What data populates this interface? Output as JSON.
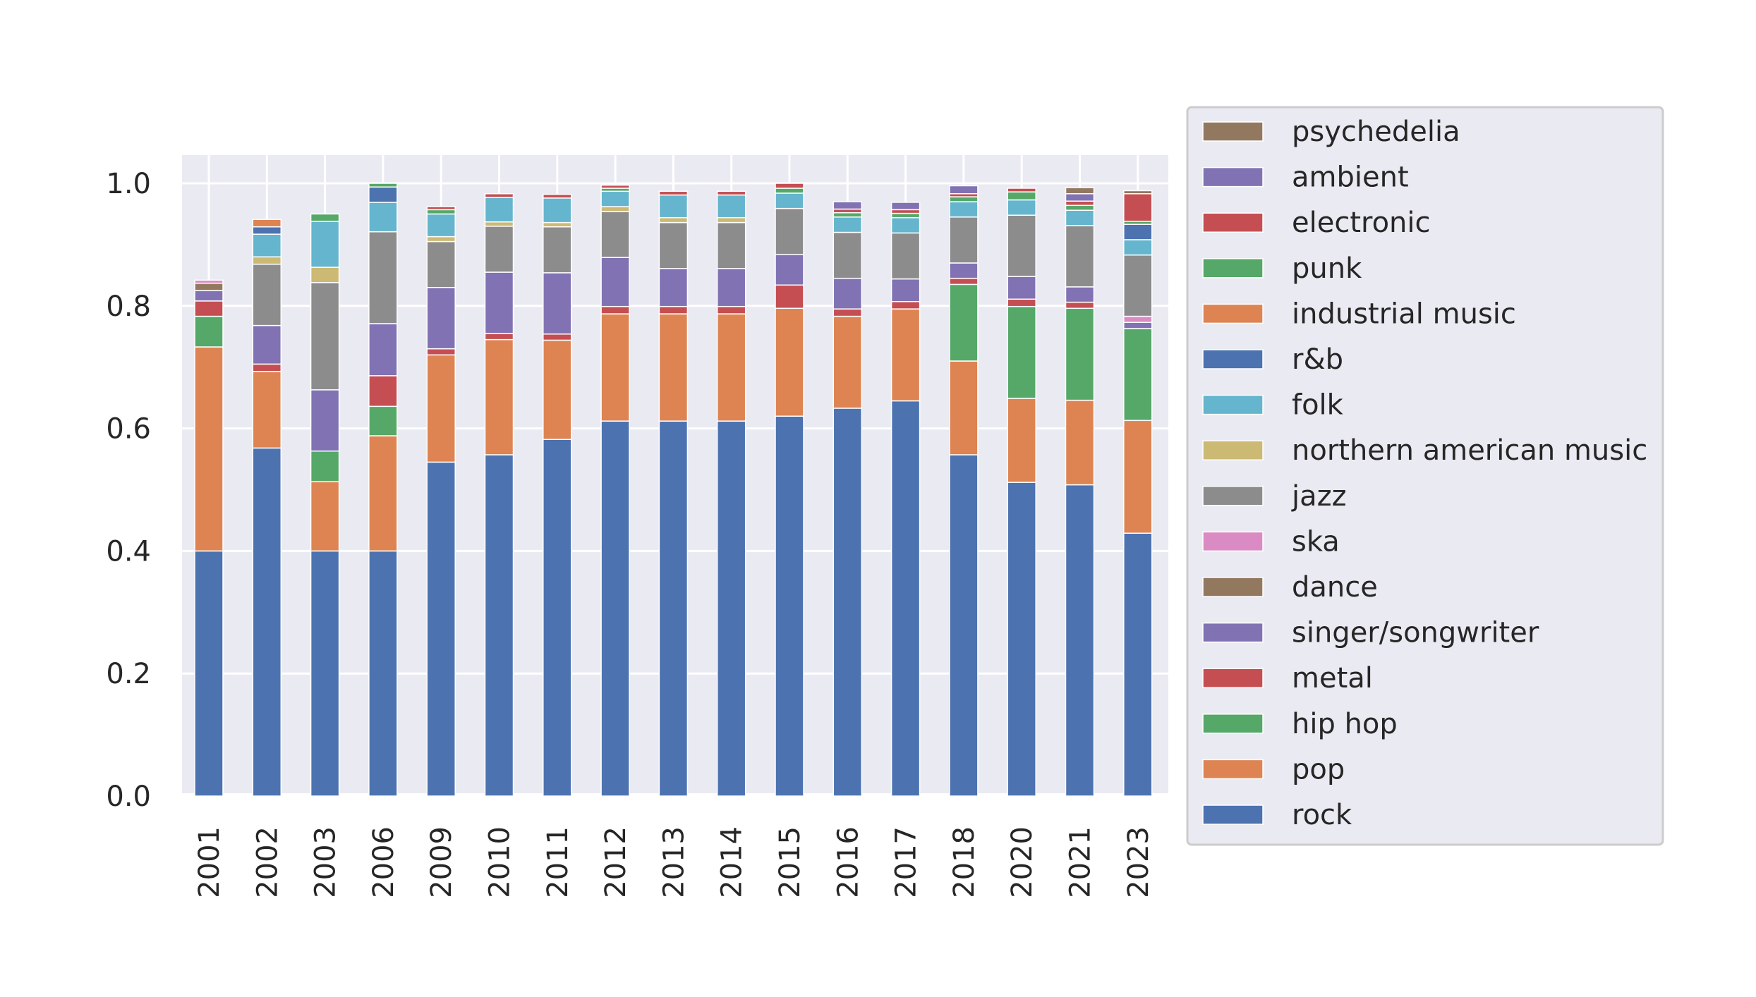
{
  "chart_data": {
    "type": "bar",
    "stacked": true,
    "categories": [
      "2001",
      "2002",
      "2003",
      "2006",
      "2009",
      "2010",
      "2011",
      "2012",
      "2013",
      "2014",
      "2015",
      "2016",
      "2017",
      "2018",
      "2020",
      "2021",
      "2023"
    ],
    "ylim": [
      0,
      1.05
    ],
    "yticks": [
      "0.0",
      "0.2",
      "0.4",
      "0.6",
      "0.8",
      "1.0"
    ],
    "grid": true,
    "legend_position": "right",
    "series": [
      {
        "name": "rock",
        "color": "#4c72b0",
        "values": [
          0.4,
          0.568,
          0.4,
          0.4,
          0.545,
          0.557,
          0.582,
          0.612,
          0.612,
          0.612,
          0.62,
          0.633,
          0.645,
          0.557,
          0.512,
          0.508,
          0.429
        ]
      },
      {
        "name": "pop",
        "color": "#dd8452",
        "values": [
          0.333,
          0.125,
          0.113,
          0.188,
          0.175,
          0.188,
          0.162,
          0.175,
          0.175,
          0.175,
          0.176,
          0.15,
          0.15,
          0.153,
          0.137,
          0.138,
          0.184
        ]
      },
      {
        "name": "hip hop",
        "color": "#55a868",
        "values": [
          0.05,
          0,
          0.05,
          0.048,
          0,
          0,
          0,
          0,
          0,
          0,
          0,
          0,
          0,
          0.125,
          0.15,
          0.15,
          0.15
        ]
      },
      {
        "name": "metal",
        "color": "#c44e52",
        "values": [
          0.025,
          0.012,
          0,
          0.05,
          0.01,
          0.01,
          0.01,
          0.012,
          0.012,
          0.012,
          0.038,
          0.012,
          0.012,
          0.01,
          0.012,
          0.01,
          0
        ]
      },
      {
        "name": "singer/songwriter",
        "color": "#8172b3",
        "values": [
          0.017,
          0.063,
          0.1,
          0.085,
          0.1,
          0.1,
          0.1,
          0.08,
          0.062,
          0.062,
          0.05,
          0.05,
          0.037,
          0.025,
          0.037,
          0.025,
          0.01
        ]
      },
      {
        "name": "dance",
        "color": "#937860",
        "values": [
          0.012,
          0,
          0,
          0,
          0,
          0,
          0,
          0,
          0,
          0,
          0,
          0,
          0,
          0,
          0,
          0,
          0
        ]
      },
      {
        "name": "ska",
        "color": "#da8bc3",
        "values": [
          0.005,
          0,
          0,
          0,
          0,
          0,
          0,
          0,
          0,
          0,
          0,
          0,
          0,
          0,
          0,
          0,
          0.01
        ]
      },
      {
        "name": "jazz",
        "color": "#8c8c8c",
        "values": [
          0,
          0.1,
          0.175,
          0.15,
          0.075,
          0.075,
          0.075,
          0.075,
          0.075,
          0.075,
          0.075,
          0.075,
          0.075,
          0.075,
          0.1,
          0.1,
          0.1
        ]
      },
      {
        "name": "northern american music",
        "color": "#ccb974",
        "values": [
          0,
          0.012,
          0.025,
          0,
          0.008,
          0.007,
          0.007,
          0.008,
          0.008,
          0.008,
          0,
          0,
          0,
          0,
          0,
          0,
          0
        ]
      },
      {
        "name": "folk",
        "color": "#64b5cd",
        "values": [
          0,
          0.037,
          0.075,
          0.048,
          0.037,
          0.04,
          0.04,
          0.025,
          0.037,
          0.037,
          0.025,
          0.025,
          0.025,
          0.025,
          0.025,
          0.025,
          0.025
        ]
      },
      {
        "name": "r&b",
        "color": "#4c72b0",
        "values": [
          0,
          0.012,
          0,
          0.025,
          0,
          0,
          0,
          0,
          0,
          0,
          0,
          0,
          0,
          0,
          0,
          0,
          0.025
        ]
      },
      {
        "name": "industrial music",
        "color": "#dd8452",
        "values": [
          0,
          0.012,
          0,
          0,
          0,
          0,
          0,
          0,
          0,
          0,
          0,
          0,
          0,
          0,
          0,
          0,
          0
        ]
      },
      {
        "name": "punk",
        "color": "#55a868",
        "values": [
          0,
          0,
          0.012,
          0.006,
          0.007,
          0,
          0,
          0.005,
          0,
          0,
          0.008,
          0.007,
          0.007,
          0.008,
          0.013,
          0.008,
          0.005
        ]
      },
      {
        "name": "electronic",
        "color": "#c44e52",
        "values": [
          0,
          0,
          0,
          0,
          0.005,
          0.006,
          0.006,
          0.005,
          0.006,
          0.006,
          0.008,
          0.006,
          0.006,
          0.005,
          0.006,
          0.007,
          0.045
        ]
      },
      {
        "name": "ambient",
        "color": "#8172b3",
        "values": [
          0,
          0,
          0,
          0,
          0,
          0,
          0,
          0,
          0,
          0,
          0,
          0.012,
          0.012,
          0.013,
          0,
          0.012,
          0
        ]
      },
      {
        "name": "psychedelia",
        "color": "#937860",
        "values": [
          0,
          0,
          0,
          0,
          0,
          0,
          0,
          0,
          0,
          0,
          0,
          0,
          0,
          0,
          0,
          0.01,
          0.005
        ]
      }
    ]
  }
}
